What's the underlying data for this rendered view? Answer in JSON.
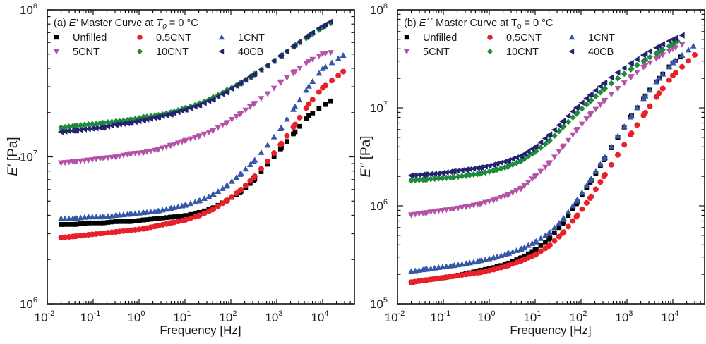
{
  "figure": {
    "colors": {
      "Unfilled": "#000000",
      "0.5CNT": "#e8202a",
      "1CNT": "#3656a8",
      "5CNT": "#b452a8",
      "10CNT": "#1e8a3e",
      "40CB": "#23236e"
    },
    "markers": {
      "Unfilled": "square",
      "0.5CNT": "circle",
      "1CNT": "triangle-up",
      "5CNT": "triangle-down",
      "10CNT": "diamond",
      "40CB": "triangle-left"
    }
  },
  "chart_data": [
    {
      "type": "scatter",
      "panel": "a",
      "title_prefix": "(a) ",
      "title_symbol": "E'",
      "title_rest": " Master Curve at ",
      "title_T": "T",
      "title_sub": "0",
      "title_tail": " = 0 °C",
      "xlabel": "Frequency [Hz]",
      "ylabel_symbol": "E'",
      "ylabel_unit": " [Pa]",
      "xscale": "log",
      "yscale": "log",
      "xlim": [
        0.01,
        50000
      ],
      "ylim": [
        1000000,
        100000000
      ],
      "x_ticks": [
        {
          "base": "10",
          "exp": "-2",
          "value": 0.01
        },
        {
          "base": "10",
          "exp": "-1",
          "value": 0.1
        },
        {
          "base": "10",
          "exp": "0",
          "value": 1
        },
        {
          "base": "10",
          "exp": "1",
          "value": 10
        },
        {
          "base": "10",
          "exp": "2",
          "value": 100
        },
        {
          "base": "10",
          "exp": "3",
          "value": 1000
        },
        {
          "base": "10",
          "exp": "4",
          "value": 10000
        }
      ],
      "y_ticks": [
        {
          "base": "10",
          "exp": "6",
          "value": 1000000
        },
        {
          "base": "10",
          "exp": "7",
          "value": 10000000
        },
        {
          "base": "10",
          "exp": "8",
          "value": 100000000
        }
      ],
      "legend": {
        "placement": "top-left",
        "entries": [
          "Unfilled",
          "0.5CNT",
          "1CNT",
          "5CNT",
          "10CNT",
          "40CB"
        ]
      },
      "series": [
        {
          "name": "Unfilled",
          "x": [
            0.02,
            0.04,
            0.079,
            0.16,
            0.32,
            0.63,
            1.26,
            2.51,
            5.01,
            10,
            20,
            39.8,
            79.4,
            158,
            316,
            631,
            1259,
            2512,
            5012,
            15000
          ],
          "y": [
            3470000.0,
            3470000.0,
            3550000.0,
            3550000.0,
            3630000.0,
            3630000.0,
            3720000.0,
            3800000.0,
            3890000.0,
            3980000.0,
            4170000.0,
            4470000.0,
            5010000.0,
            5750000.0,
            6920000.0,
            8910000.0,
            11500000.0,
            14800000.0,
            19100000.0,
            24000000.0
          ]
        },
        {
          "name": "0.5CNT",
          "x": [
            0.02,
            0.04,
            0.079,
            0.16,
            0.32,
            0.63,
            1.26,
            2.51,
            5.01,
            10,
            20,
            39.8,
            79.4,
            158,
            316,
            631,
            1259,
            2512,
            5012,
            10000,
            28000
          ],
          "y": [
            2820000.0,
            2880000.0,
            2950000.0,
            3020000.0,
            3090000.0,
            3160000.0,
            3240000.0,
            3390000.0,
            3550000.0,
            3720000.0,
            3980000.0,
            4370000.0,
            5010000.0,
            5890000.0,
            7240000.0,
            9330000.0,
            12300000.0,
            16600000.0,
            22900000.0,
            29500000.0,
            38000000.0
          ]
        },
        {
          "name": "1CNT",
          "x": [
            0.02,
            0.04,
            0.079,
            0.16,
            0.32,
            0.63,
            1.26,
            2.51,
            5.01,
            10,
            20,
            39.8,
            79.4,
            158,
            316,
            631,
            1259,
            2512,
            5012,
            10000,
            28000
          ],
          "y": [
            3800000.0,
            3800000.0,
            3900000.0,
            3900000.0,
            4000000.0,
            4070000.0,
            4170000.0,
            4270000.0,
            4470000.0,
            4680000.0,
            5010000.0,
            5500000.0,
            6310000.0,
            7590000.0,
            9330000.0,
            12000000.0,
            15800000.0,
            21900000.0,
            30200000.0,
            39800000.0,
            49000000.0
          ]
        },
        {
          "name": "5CNT",
          "x": [
            0.02,
            0.04,
            0.079,
            0.16,
            0.32,
            0.63,
            1.26,
            2.51,
            5.01,
            10,
            20,
            39.8,
            79.4,
            158,
            316,
            631,
            1259,
            2512,
            5012,
            10000,
            15000
          ],
          "y": [
            9100000.0,
            9300000.0,
            9500000.0,
            9800000.0,
            10000000.0,
            10500000.0,
            10700000.0,
            11200000.0,
            12000000.0,
            12900000.0,
            13800000.0,
            15100000.0,
            17000000.0,
            19500000.0,
            22900000.0,
            26900000.0,
            32400000.0,
            38000000.0,
            44700000.0,
            50100000.0,
            51300000.0
          ]
        },
        {
          "name": "10CNT",
          "x": [
            0.02,
            0.04,
            0.079,
            0.16,
            0.32,
            0.63,
            1.26,
            2.51,
            5.01,
            10,
            20,
            39.8,
            79.4,
            158,
            316,
            631,
            1259,
            2512,
            5012,
            10000,
            15000
          ],
          "y": [
            15800000.0,
            16200000.0,
            16600000.0,
            17000000.0,
            17400000.0,
            17800000.0,
            18600000.0,
            19100000.0,
            20000000.0,
            21400000.0,
            22900000.0,
            25100000.0,
            28200000.0,
            31600000.0,
            36300000.0,
            41700000.0,
            49000000.0,
            57500000.0,
            66000000.0,
            75900000.0,
            81300000.0
          ]
        },
        {
          "name": "40CB",
          "x": [
            0.02,
            0.04,
            0.079,
            0.16,
            0.32,
            0.63,
            1.26,
            2.51,
            5.01,
            10,
            20,
            39.8,
            79.4,
            158,
            316,
            631,
            1259,
            2512,
            5012,
            10000,
            15000
          ],
          "y": [
            14800000.0,
            15100000.0,
            15500000.0,
            15800000.0,
            16600000.0,
            17000000.0,
            17800000.0,
            18600000.0,
            19500000.0,
            20900000.0,
            22400000.0,
            24500000.0,
            27500000.0,
            31600000.0,
            36300000.0,
            41700000.0,
            49000000.0,
            57500000.0,
            67600000.0,
            77600000.0,
            83200000.0
          ]
        }
      ]
    },
    {
      "type": "scatter",
      "panel": "b",
      "title_prefix": "(b) ",
      "title_symbol": "E´´",
      "title_rest": " Master Curve at  ",
      "title_T": "T",
      "title_sub": "0",
      "title_tail": " = 0 °C",
      "xlabel": "Frequency [Hz]",
      "ylabel_symbol": "E''",
      "ylabel_unit": " [Pa]",
      "xscale": "log",
      "yscale": "log",
      "xlim": [
        0.01,
        50000
      ],
      "ylim": [
        100000,
        100000000
      ],
      "x_ticks": [
        {
          "base": "10",
          "exp": "-2",
          "value": 0.01
        },
        {
          "base": "10",
          "exp": "-1",
          "value": 0.1
        },
        {
          "base": "10",
          "exp": "0",
          "value": 1
        },
        {
          "base": "10",
          "exp": "1",
          "value": 10
        },
        {
          "base": "10",
          "exp": "2",
          "value": 100
        },
        {
          "base": "10",
          "exp": "3",
          "value": 1000
        },
        {
          "base": "10",
          "exp": "4",
          "value": 10000
        }
      ],
      "y_ticks": [
        {
          "base": "10",
          "exp": "5",
          "value": 100000
        },
        {
          "base": "10",
          "exp": "6",
          "value": 1000000
        },
        {
          "base": "10",
          "exp": "7",
          "value": 10000000
        },
        {
          "base": "10",
          "exp": "8",
          "value": 100000000
        }
      ],
      "legend": {
        "placement": "top-left",
        "entries": [
          "Unfilled",
          "0.5CNT",
          "1CNT",
          "5CNT",
          "10CNT",
          "40CB"
        ]
      },
      "series": [
        {
          "name": "Unfilled",
          "x": [
            0.02,
            0.04,
            0.079,
            0.16,
            0.32,
            0.63,
            1.26,
            2.51,
            5.01,
            10,
            20,
            39.8,
            79.4,
            158,
            316,
            631,
            1259,
            2512,
            5012,
            10000,
            15000
          ],
          "y": [
            166000.0,
            174000.0,
            182000.0,
            191000.0,
            204000.0,
            219000.0,
            234000.0,
            257000.0,
            295000.0,
            355000.0,
            457000.0,
            661000.0,
            1050000.0,
            1740000.0,
            2950000.0,
            5010000.0,
            8320000.0,
            13200000.0,
            20000000.0,
            28800000.0,
            33100000.0
          ]
        },
        {
          "name": "0.5CNT",
          "x": [
            0.02,
            0.04,
            0.079,
            0.16,
            0.32,
            0.63,
            1.26,
            2.51,
            5.01,
            10,
            20,
            39.8,
            79.4,
            158,
            316,
            631,
            1259,
            2512,
            5012,
            10000,
            30000
          ],
          "y": [
            166000.0,
            174000.0,
            182000.0,
            191000.0,
            200000.0,
            209000.0,
            224000.0,
            245000.0,
            275000.0,
            316000.0,
            389000.0,
            525000.0,
            776000.0,
            1200000.0,
            2000000.0,
            3310000.0,
            5500000.0,
            8910000.0,
            14100000.0,
            21400000.0,
            34700000.0
          ]
        },
        {
          "name": "1CNT",
          "x": [
            0.02,
            0.04,
            0.079,
            0.16,
            0.32,
            0.63,
            1.26,
            2.51,
            5.01,
            10,
            20,
            39.8,
            79.4,
            158,
            316,
            631,
            1259,
            2512,
            5012,
            10000,
            28000
          ],
          "y": [
            214000.0,
            224000.0,
            234000.0,
            245000.0,
            257000.0,
            275000.0,
            295000.0,
            324000.0,
            363000.0,
            427000.0,
            525000.0,
            724000.0,
            1120000.0,
            1820000.0,
            3020000.0,
            5130000.0,
            8320000.0,
            13200000.0,
            20000000.0,
            28800000.0,
            42700000.0
          ]
        },
        {
          "name": "5CNT",
          "x": [
            0.02,
            0.04,
            0.079,
            0.16,
            0.32,
            0.63,
            1.26,
            2.51,
            5.01,
            10,
            20,
            39.8,
            79.4,
            158,
            316,
            631,
            1259,
            2512,
            5012,
            10000,
            16000
          ],
          "y": [
            810000.0,
            850000.0,
            890000.0,
            930000.0,
            980000.0,
            1050000.0,
            1150000.0,
            1290000.0,
            1510000.0,
            2000000.0,
            2690000.0,
            3980000.0,
            5890000.0,
            8510000.0,
            11700000.0,
            15800000.0,
            20900000.0,
            26900000.0,
            33100000.0,
            39800000.0,
            44700000.0
          ]
        },
        {
          "name": "10CNT",
          "x": [
            0.02,
            0.04,
            0.079,
            0.16,
            0.32,
            0.63,
            1.26,
            2.51,
            5.01,
            10,
            20,
            39.8,
            79.4,
            158,
            316,
            631,
            1259,
            2512,
            5012,
            10000,
            12600
          ],
          "y": [
            1820000.0,
            1860000.0,
            1910000.0,
            1950000.0,
            2040000.0,
            2140000.0,
            2290000.0,
            2510000.0,
            2880000.0,
            3550000.0,
            4570000.0,
            6310000.0,
            8710000.0,
            11700000.0,
            15500000.0,
            20000000.0,
            25100000.0,
            30900000.0,
            37200000.0,
            44700000.0,
            47900000.0
          ]
        },
        {
          "name": "40CB",
          "x": [
            0.02,
            0.04,
            0.079,
            0.16,
            0.32,
            0.63,
            1.26,
            2.51,
            5.01,
            10,
            20,
            39.8,
            79.4,
            158,
            316,
            631,
            1259,
            2512,
            5012,
            10000,
            16000
          ],
          "y": [
            2040000.0,
            2090000.0,
            2140000.0,
            2240000.0,
            2340000.0,
            2450000.0,
            2630000.0,
            2880000.0,
            3240000.0,
            3980000.0,
            5250000.0,
            7240000.0,
            10000000.0,
            13500000.0,
            17800000.0,
            22900000.0,
            28800000.0,
            35500000.0,
            42700000.0,
            50100000.0,
            55000000.0
          ]
        }
      ]
    }
  ]
}
